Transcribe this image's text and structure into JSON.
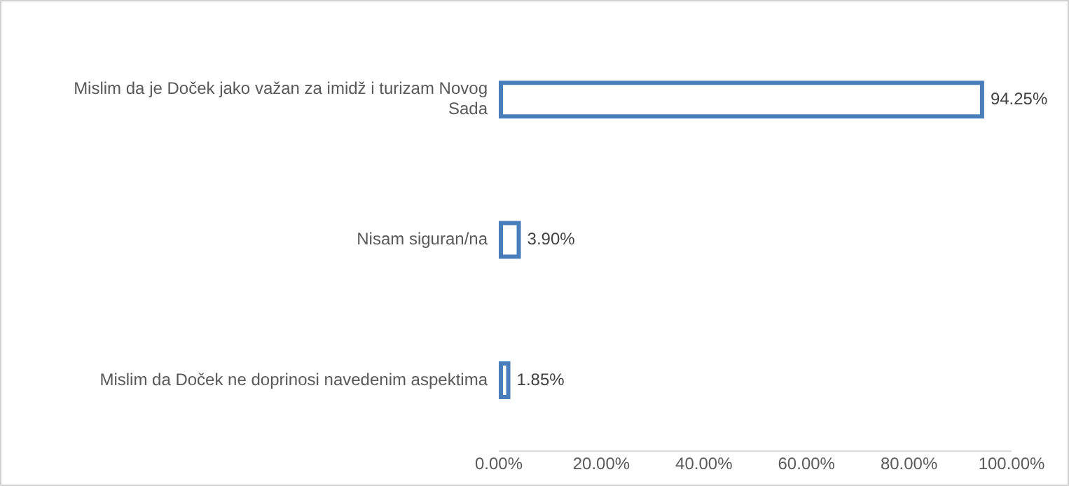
{
  "chart_data": {
    "type": "bar",
    "orientation": "horizontal",
    "categories": [
      "Mislim da je Doček jako važan za imidž i turizam Novog Sada",
      "Nisam siguran/na",
      "Mislim da Doček ne doprinosi navedenim aspektima"
    ],
    "values": [
      94.25,
      3.9,
      1.85
    ],
    "value_labels": [
      "94.25%",
      "3.90%",
      "1.85%"
    ],
    "color": "#4a7ebb",
    "xlim": [
      0,
      100
    ],
    "xticks": [
      {
        "value": 0,
        "label": "0.00%"
      },
      {
        "value": 20,
        "label": "20.00%"
      },
      {
        "value": 40,
        "label": "40.00%"
      },
      {
        "value": 60,
        "label": "60.00%"
      },
      {
        "value": 80,
        "label": "80.00%"
      },
      {
        "value": 100,
        "label": "100.00%"
      }
    ],
    "grid": false,
    "legend": false
  }
}
